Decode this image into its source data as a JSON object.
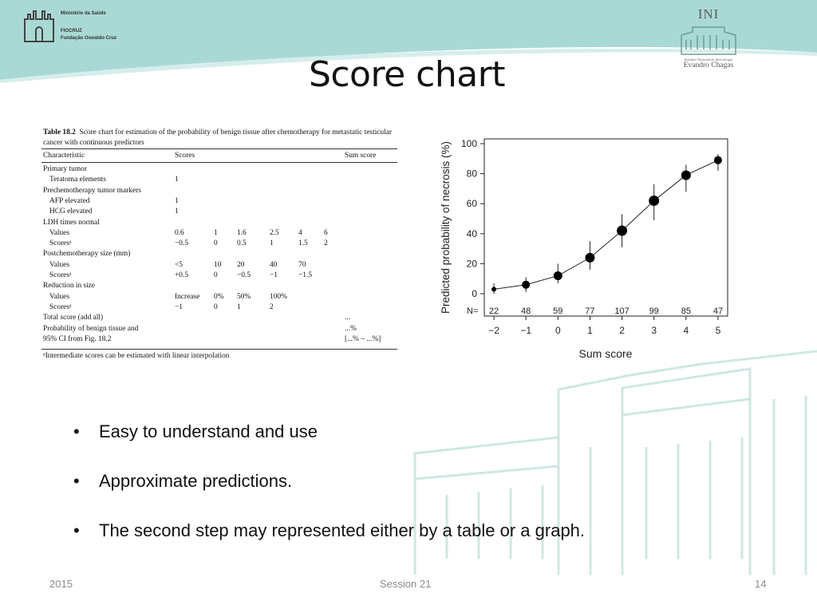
{
  "header": {
    "logo_left_lines": [
      "Ministério da Saúde",
      "FIOCRUZ",
      "Fundação Oswaldo Cruz"
    ],
    "logo_right": {
      "abbr": "INI",
      "institute": "Instituto Nacional de Infectologia",
      "name": "Evandro Chagas"
    },
    "band_color": "#a9d9d5"
  },
  "slide": {
    "title": "Score chart"
  },
  "table": {
    "caption_label": "Table 18.2",
    "caption_text": "Score chart for estimation of the probability of benign tissue after chemotherapy for metastatic testicular cancer with continuous predictors",
    "headers": {
      "characteristic": "Characteristic",
      "scores": "Scores",
      "sum": "Sum score"
    },
    "rows": [
      {
        "label": "Primary tumor",
        "indent": 0,
        "values": []
      },
      {
        "label": "Teratoma elements",
        "indent": 1,
        "values": [
          "1"
        ]
      },
      {
        "label": "Prechemotherapy tumor markers",
        "indent": 0,
        "values": []
      },
      {
        "label": "AFP elevated",
        "indent": 1,
        "values": [
          "1"
        ]
      },
      {
        "label": "HCG elevated",
        "indent": 1,
        "values": [
          "1"
        ]
      },
      {
        "label": "LDH times normal",
        "indent": 0,
        "values": []
      },
      {
        "label": "Values",
        "indent": 1,
        "values": [
          "0.6",
          "1",
          "1.6",
          "2.5",
          "4",
          "6"
        ]
      },
      {
        "label": "Scoresᵃ",
        "indent": 1,
        "values": [
          "−0.5",
          "0",
          "0.5",
          "1",
          "1.5",
          "2"
        ]
      },
      {
        "label": "Postchemotherapy size (mm)",
        "indent": 0,
        "values": []
      },
      {
        "label": "Values",
        "indent": 1,
        "values": [
          "<5",
          "10",
          "20",
          "40",
          "70"
        ]
      },
      {
        "label": "Scoresᵃ",
        "indent": 1,
        "values": [
          "+0.5",
          "0",
          "−0.5",
          "−1",
          "−1.5"
        ]
      },
      {
        "label": "Reduction in size",
        "indent": 0,
        "values": []
      },
      {
        "label": "Values",
        "indent": 1,
        "values": [
          "Increase",
          "0%",
          "50%",
          "100%"
        ]
      },
      {
        "label": "Scoresᵃ",
        "indent": 1,
        "values": [
          "−1",
          "0",
          "1",
          "2"
        ]
      },
      {
        "label": "Total score (add all)",
        "indent": 0,
        "values": [],
        "sum": "..."
      },
      {
        "label": "Probability of benign tissue and",
        "indent": 0,
        "values": [],
        "sum": "...%"
      },
      {
        "label": "95% CI from Fig. 18.2",
        "indent": 0,
        "values": [],
        "sum": "[...% – ...%]"
      }
    ],
    "footnote": "ᵃIntermediate scores can be estimated with linear interpolation"
  },
  "chart_data": {
    "type": "scatter",
    "xlabel": "Sum score",
    "ylabel": "Predicted probability of necrosis (%)",
    "x": [
      -2,
      -1,
      0,
      1,
      2,
      3,
      4,
      5
    ],
    "xticks": [
      "−2",
      "−1",
      "0",
      "1",
      "2",
      "3",
      "4",
      "5"
    ],
    "yticks": [
      "0",
      "20",
      "40",
      "60",
      "80",
      "100"
    ],
    "ylim": [
      0,
      100
    ],
    "xlim": [
      -2.3,
      5.3
    ],
    "series": [
      {
        "values": [
          3,
          6,
          12,
          24,
          42,
          62,
          79,
          89
        ],
        "ci_low": [
          0,
          1,
          7,
          16,
          31,
          49,
          68,
          82
        ],
        "ci_high": [
          7,
          11,
          20,
          35,
          53,
          73,
          86,
          93
        ]
      }
    ],
    "n_label": "N=",
    "n_values": [
      "22",
      "48",
      "59",
      "77",
      "107",
      "99",
      "85",
      "47"
    ],
    "grid": false,
    "connected": true
  },
  "bullets": [
    "Easy to understand and use",
    "Approximate predictions.",
    "The second step may represented either by a table or a graph."
  ],
  "bullet_symbol": "•",
  "footer": {
    "year": "2015",
    "session": "Session 21",
    "page": "14"
  }
}
